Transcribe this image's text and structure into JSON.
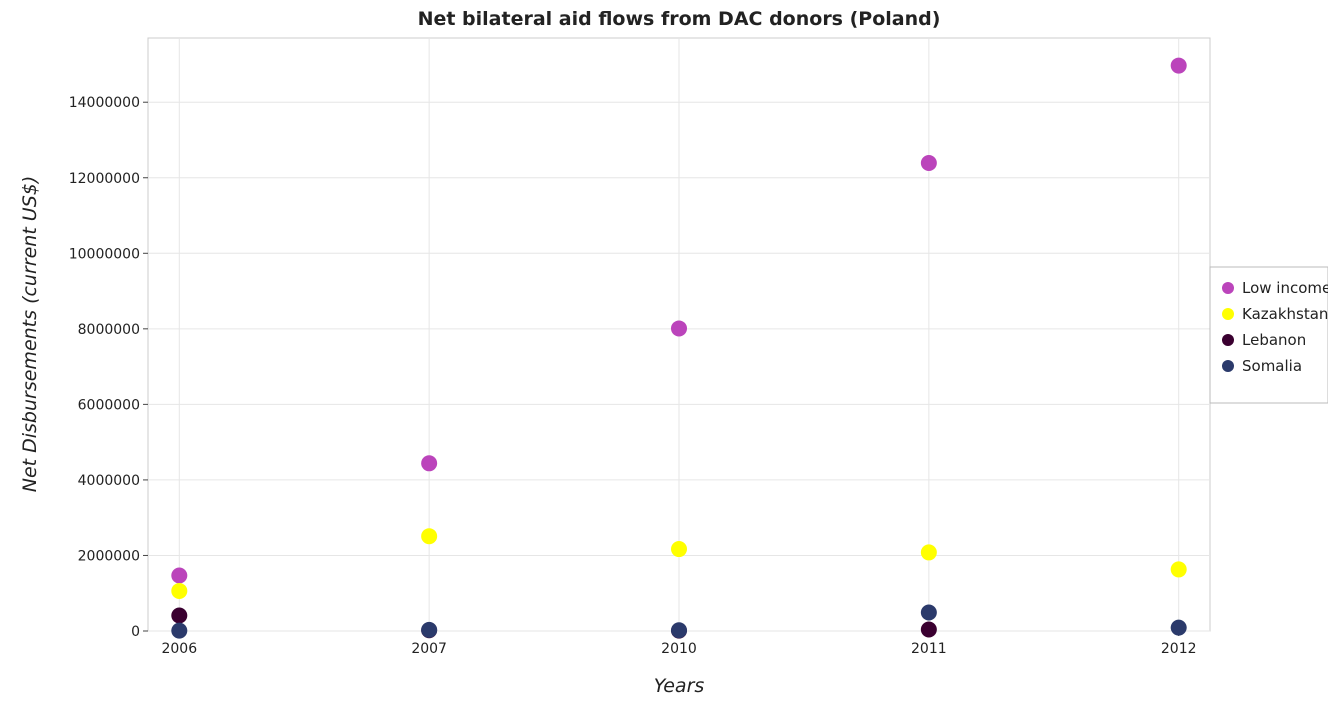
{
  "chart_data": {
    "type": "scatter",
    "title": "Net bilateral aid flows from DAC donors (Poland)",
    "xlabel": "Years",
    "ylabel": "Net Disbursements (current US$)",
    "categories": [
      "2006",
      "2007",
      "2010",
      "2011",
      "2012"
    ],
    "ylim": [
      0,
      15700000
    ],
    "yticks": [
      0,
      2000000,
      4000000,
      6000000,
      8000000,
      10000000,
      12000000,
      14000000
    ],
    "ytick_labels": [
      "0",
      "2000000",
      "4000000",
      "6000000",
      "8000000",
      "10000000",
      "12000000",
      "14000000"
    ],
    "grid": true,
    "legend_position": "right",
    "series": [
      {
        "name": "Low income",
        "color": "#bb44bb",
        "values": [
          1470000,
          4440000,
          8010000,
          12390000,
          14970000
        ]
      },
      {
        "name": "Kazakhstan",
        "color": "#ffff00",
        "values": [
          1060000,
          2510000,
          2170000,
          2080000,
          1630000
        ]
      },
      {
        "name": "Lebanon",
        "color": "#3a0030",
        "values": [
          410000,
          20000,
          10000,
          40000,
          null
        ]
      },
      {
        "name": "Somalia",
        "color": "#2b3a6b",
        "values": [
          10000,
          30000,
          20000,
          490000,
          90000
        ]
      }
    ]
  }
}
